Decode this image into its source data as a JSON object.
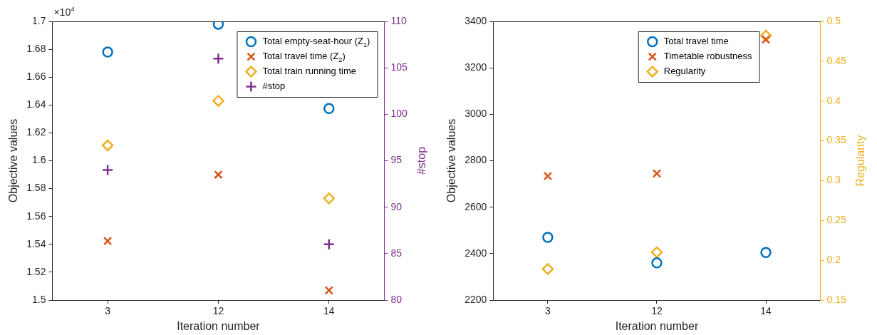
{
  "chart_data": [
    {
      "type": "scatter",
      "categories": [
        "3",
        "12",
        "14"
      ],
      "xlabel": "Iteration number",
      "ylabel": "Objective values",
      "y2label": "#stop",
      "annotations": [
        "×10$^{4}$"
      ],
      "ylim": [
        1.5,
        1.7
      ],
      "yticks": [
        1.5,
        1.52,
        1.54,
        1.56,
        1.58,
        1.6,
        1.62,
        1.64,
        1.66,
        1.68,
        1.7
      ],
      "y2lim": [
        80,
        110
      ],
      "y2ticks": [
        80,
        85,
        90,
        95,
        100,
        105,
        110
      ],
      "legend": "top right",
      "grid": false,
      "series": [
        {
          "name": "Total empty-seat-hour (Z$_{1}$)",
          "color": "#0072bd",
          "marker": "circle",
          "values": [
            1.678,
            1.698,
            1.6375
          ]
        },
        {
          "name": "Total travel time (Z$_{2}$)",
          "color": "#d95319",
          "marker": "x",
          "values": [
            1.5424,
            1.59,
            1.507
          ]
        },
        {
          "name": "Total train running time",
          "color": "#edb120",
          "marker": "diamond",
          "values": [
            1.611,
            1.643,
            1.573
          ]
        },
        {
          "name": "#stop",
          "color": "#7e2f8e",
          "marker": "cross",
          "axis": "y2",
          "values": [
            94,
            106,
            86
          ]
        }
      ]
    },
    {
      "type": "scatter",
      "categories": [
        "3",
        "12",
        "14"
      ],
      "xlabel": "Iteration number",
      "ylabel": "Objective values",
      "y2label": "Regularity",
      "ylim": [
        2200,
        3400
      ],
      "yticks": [
        2200,
        2400,
        2600,
        2800,
        3000,
        3200,
        3400
      ],
      "y2lim": [
        0.15,
        0.5
      ],
      "y2ticks": [
        {
          "value": 0.15,
          "label": "0.15"
        },
        {
          "value": 0.2,
          "label": "0.2"
        },
        {
          "value": 0.25,
          "label": "0.25"
        },
        {
          "value": 0.3,
          "label": "0.3"
        },
        {
          "value": 0.35,
          "label": "0.35"
        },
        {
          "value": 0.4,
          "label": "0.4"
        },
        {
          "value": 0.45,
          "label": "0.45"
        },
        {
          "value": 0.5,
          "label": "0.5"
        }
      ],
      "legend": "top right",
      "grid": false,
      "series": [
        {
          "name": "Total travel time",
          "color": "#0072bd",
          "marker": "circle",
          "values": [
            2470,
            2360,
            2405
          ]
        },
        {
          "name": "Timetable robustness",
          "color": "#d95319",
          "marker": "x",
          "values": [
            2734,
            2745,
            3322
          ]
        },
        {
          "name": "Regularity",
          "color": "#edb120",
          "marker": "diamond",
          "axis": "y2",
          "values": [
            0.189,
            0.21,
            0.482
          ]
        }
      ]
    }
  ]
}
